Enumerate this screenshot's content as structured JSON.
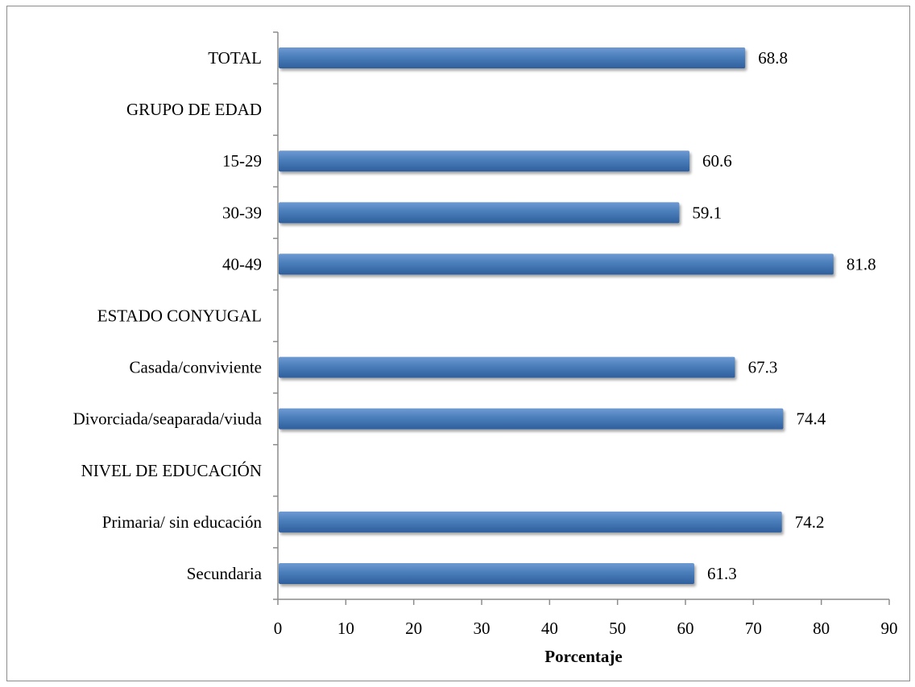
{
  "chart_data": {
    "type": "bar",
    "orientation": "horizontal",
    "categories": [
      "TOTAL",
      "GRUPO DE EDAD",
      "15-29",
      "30-39",
      "40-49",
      "ESTADO CONYUGAL",
      "Casada/conviviente",
      "Divorciada/seaparada/viuda",
      "NIVEL DE EDUCACIÓN",
      "Primaria/ sin educación",
      "Secundaria"
    ],
    "values": [
      68.8,
      null,
      60.6,
      59.1,
      81.8,
      null,
      67.3,
      74.4,
      null,
      74.2,
      61.3
    ],
    "data_labels": [
      "68.8",
      "",
      "60.6",
      "59.1",
      "81.8",
      "",
      "67.3",
      "74.4",
      "",
      "74.2",
      "61.3"
    ],
    "title": "",
    "xlabel": "Porcentaje",
    "ylabel": "",
    "xlim": [
      0,
      90
    ],
    "xticks": [
      0,
      10,
      20,
      30,
      40,
      50,
      60,
      70,
      80,
      90
    ],
    "xtick_labels": [
      "0",
      "10",
      "20",
      "30",
      "40",
      "50",
      "60",
      "70",
      "80",
      "90"
    ],
    "grid": false,
    "legend": "none",
    "colors": {
      "bar": "#4a7ebb",
      "bar_dark": "#2f5f9c",
      "bar_light": "#6f9ad2",
      "axis": "#8c8c8c",
      "border": "#8c8c8c",
      "text": "#000000"
    }
  }
}
